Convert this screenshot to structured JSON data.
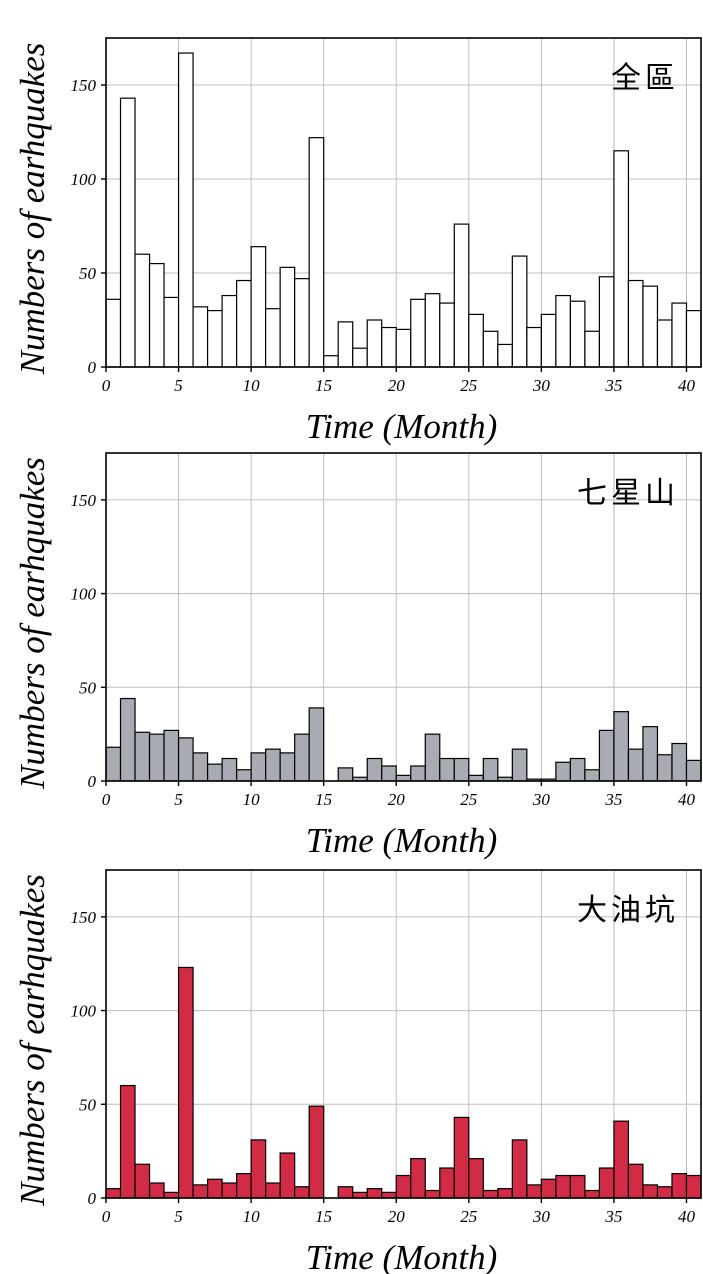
{
  "chart_data": [
    {
      "type": "bar",
      "title": "全區",
      "xlabel": "Time (Month)",
      "ylabel": "Numbers of earhquakes",
      "xlim": [
        0,
        41
      ],
      "ylim": [
        0,
        175
      ],
      "xticks": [
        "0",
        "5",
        "10",
        "15",
        "20",
        "25",
        "30",
        "35",
        "40"
      ],
      "yticks": [
        "0",
        "50",
        "100",
        "150"
      ],
      "grid": true,
      "bar_color": "#ffffff",
      "x": [
        0,
        1,
        2,
        3,
        4,
        5,
        6,
        7,
        8,
        9,
        10,
        11,
        12,
        13,
        14,
        15,
        16,
        17,
        18,
        19,
        20,
        21,
        22,
        23,
        24,
        25,
        26,
        27,
        28,
        29,
        30,
        31,
        32,
        33,
        34,
        35,
        36,
        37,
        38,
        39,
        40
      ],
      "values": [
        36,
        143,
        60,
        55,
        37,
        167,
        32,
        30,
        38,
        46,
        64,
        31,
        53,
        47,
        122,
        6,
        24,
        10,
        25,
        21,
        20,
        36,
        39,
        34,
        76,
        28,
        19,
        12,
        59,
        21,
        28,
        38,
        35,
        19,
        48,
        115,
        46,
        43,
        25,
        34,
        30
      ]
    },
    {
      "type": "bar",
      "title": "七星山",
      "xlabel": "Time (Month)",
      "ylabel": "Numbers of earhquakes",
      "xlim": [
        0,
        41
      ],
      "ylim": [
        0,
        175
      ],
      "xticks": [
        "0",
        "5",
        "10",
        "15",
        "20",
        "25",
        "30",
        "35",
        "40"
      ],
      "yticks": [
        "0",
        "50",
        "100",
        "150"
      ],
      "grid": true,
      "bar_color": "#a9abb2",
      "x": [
        0,
        1,
        2,
        3,
        4,
        5,
        6,
        7,
        8,
        9,
        10,
        11,
        12,
        13,
        14,
        15,
        16,
        17,
        18,
        19,
        20,
        21,
        22,
        23,
        24,
        25,
        26,
        27,
        28,
        29,
        30,
        31,
        32,
        33,
        34,
        35,
        36,
        37,
        38,
        39,
        40
      ],
      "values": [
        18,
        44,
        26,
        25,
        27,
        23,
        15,
        9,
        12,
        6,
        15,
        17,
        15,
        25,
        39,
        0,
        7,
        2,
        12,
        8,
        3,
        8,
        25,
        12,
        12,
        3,
        12,
        2,
        17,
        1,
        1,
        10,
        12,
        6,
        27,
        37,
        17,
        29,
        14,
        20,
        11
      ]
    },
    {
      "type": "bar",
      "title": "大油坑",
      "xlabel": "Time (Month)",
      "ylabel": "Numbers of earhquakes",
      "xlim": [
        0,
        41
      ],
      "ylim": [
        0,
        175
      ],
      "xticks": [
        "0",
        "5",
        "10",
        "15",
        "20",
        "25",
        "30",
        "35",
        "40"
      ],
      "yticks": [
        "0",
        "50",
        "100",
        "150"
      ],
      "grid": true,
      "bar_color": "#d22b45",
      "x": [
        0,
        1,
        2,
        3,
        4,
        5,
        6,
        7,
        8,
        9,
        10,
        11,
        12,
        13,
        14,
        15,
        16,
        17,
        18,
        19,
        20,
        21,
        22,
        23,
        24,
        25,
        26,
        27,
        28,
        29,
        30,
        31,
        32,
        33,
        34,
        35,
        36,
        37,
        38,
        39,
        40
      ],
      "values": [
        5,
        60,
        18,
        8,
        3,
        123,
        7,
        10,
        8,
        13,
        31,
        8,
        24,
        6,
        49,
        0,
        6,
        3,
        5,
        3,
        12,
        21,
        4,
        16,
        43,
        21,
        4,
        5,
        31,
        7,
        10,
        12,
        12,
        4,
        16,
        41,
        18,
        7,
        6,
        13,
        12
      ]
    }
  ]
}
